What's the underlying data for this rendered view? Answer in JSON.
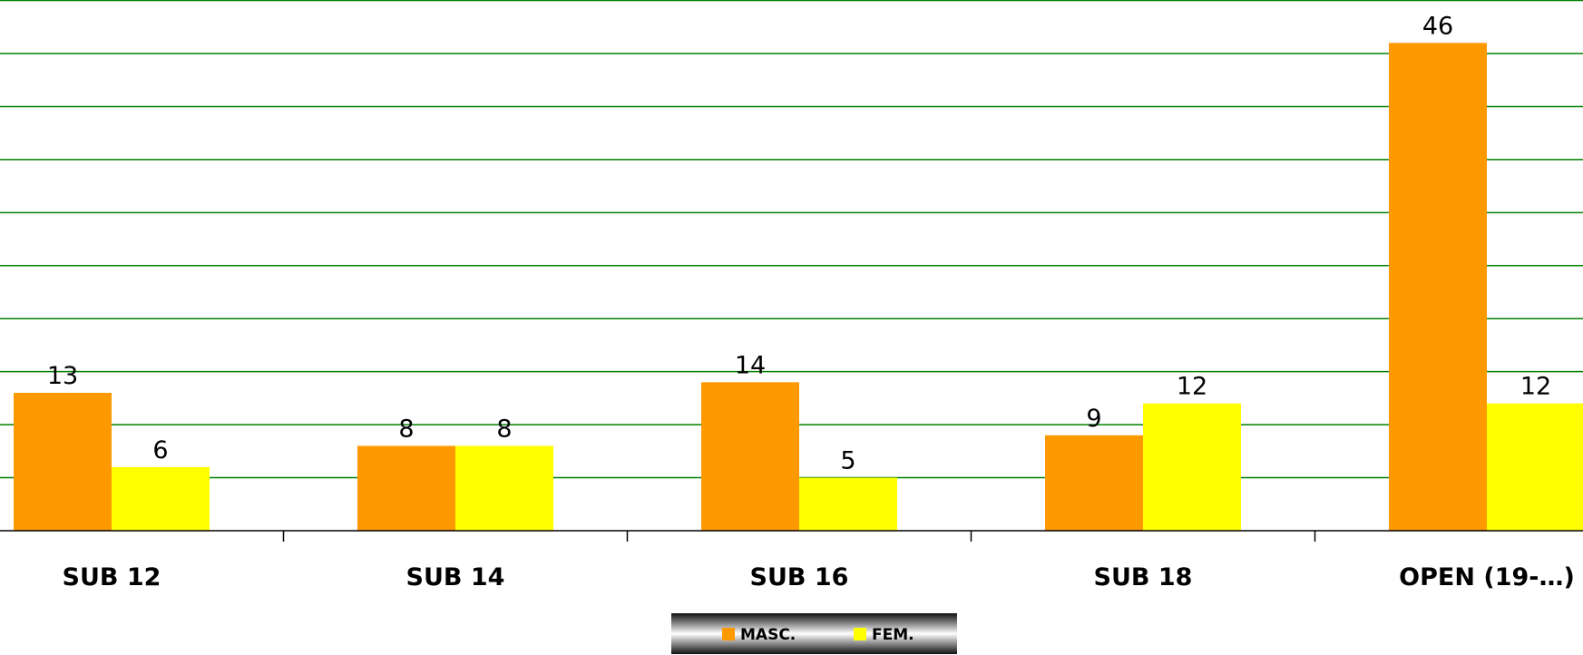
{
  "chart_data": {
    "type": "bar",
    "categories": [
      "SUB 12",
      "SUB 14",
      "SUB 16",
      "SUB 18",
      "OPEN (19-…)"
    ],
    "series": [
      {
        "name": "MASC.",
        "values": [
          13,
          8,
          14,
          9,
          46
        ],
        "color": "#FF9900"
      },
      {
        "name": "FEM.",
        "values": [
          6,
          8,
          5,
          12,
          12
        ],
        "color": "#FFFF00"
      }
    ],
    "ylim": [
      0,
      50
    ],
    "grid_step": 5,
    "grid": true,
    "grid_color": "#008000",
    "legend_position": "bottom-center"
  }
}
